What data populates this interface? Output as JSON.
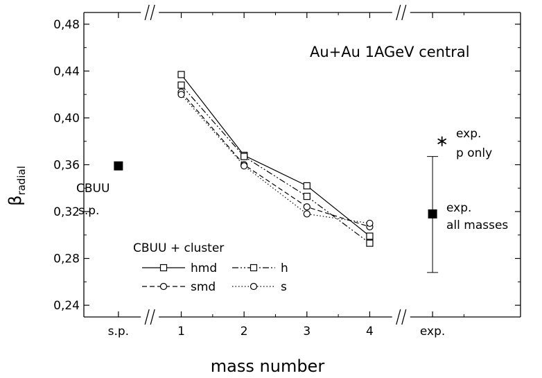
{
  "chart_data": {
    "type": "line",
    "title": "Au+Au 1AGeV central",
    "xlabel": "mass number",
    "ylabel_main": "β",
    "ylabel_sub": "radial",
    "ylim": [
      0.23,
      0.49
    ],
    "y_ticks": [
      "0,24",
      "0,28",
      "0,32",
      "0,36",
      "0,40",
      "0,44",
      "0,48"
    ],
    "y_tick_values": [
      0.24,
      0.28,
      0.32,
      0.36,
      0.4,
      0.44,
      0.48
    ],
    "x_ticks": [
      "s.p.",
      "1",
      "2",
      "3",
      "4",
      "exp."
    ],
    "x_tick_positions": [
      0,
      1,
      2,
      3,
      4,
      5
    ],
    "xlim": [
      -0.55,
      6.4
    ],
    "axis_breaks": [
      0.5,
      4.5
    ],
    "series": [
      {
        "name": "hmd",
        "line": "solid",
        "marker": "square",
        "x": [
          1,
          2,
          3,
          4
        ],
        "y": [
          0.437,
          0.368,
          0.342,
          0.299
        ]
      },
      {
        "name": "h",
        "line": "dashdotdot",
        "marker": "square",
        "x": [
          1,
          2,
          3,
          4
        ],
        "y": [
          0.428,
          0.367,
          0.333,
          0.293
        ]
      },
      {
        "name": "smd",
        "line": "dashed",
        "marker": "circle",
        "x": [
          1,
          2,
          3,
          4
        ],
        "y": [
          0.422,
          0.36,
          0.324,
          0.307
        ]
      },
      {
        "name": "s",
        "line": "dotted",
        "marker": "circle",
        "x": [
          1,
          2,
          3,
          4
        ],
        "y": [
          0.42,
          0.359,
          0.318,
          0.31
        ]
      }
    ],
    "points": [
      {
        "label": "CBUU s.p.",
        "x": 0,
        "y": 0.359,
        "marker": "filled-square"
      },
      {
        "label": "exp. all masses",
        "x": 5,
        "y": 0.318,
        "err_low": 0.268,
        "err_high": 0.367,
        "marker": "filled-square"
      },
      {
        "label": "exp. p only",
        "x": 5.15,
        "y": 0.38,
        "marker": "asterisk"
      }
    ],
    "legend_title": "CBUU + cluster",
    "legend_position": "bottom-left",
    "grid": false
  },
  "annotations": {
    "cbuu_line1": "CBUU",
    "cbuu_line2": "s.p.",
    "exp_all_line1": "exp.",
    "exp_all_line2": "all masses",
    "exp_p_line1": "exp.",
    "exp_p_line2": "p only"
  }
}
